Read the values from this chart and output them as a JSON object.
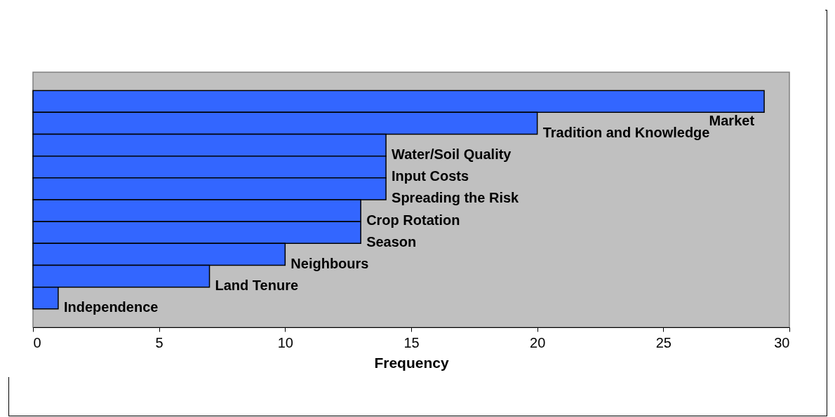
{
  "chart_data": {
    "type": "bar",
    "orientation": "horizontal",
    "xlabel": "Frequency",
    "categories": [
      "Market",
      "Tradition and Knowledge",
      "Water/Soil Quality",
      "Input Costs",
      "Spreading the Risk",
      "Crop Rotation",
      "Season",
      "Neighbours",
      "Land Tenure",
      "Independence"
    ],
    "values": [
      29,
      20,
      14,
      14,
      14,
      13,
      13,
      10,
      7,
      1
    ],
    "color": "#3366ff",
    "xlim": [
      0,
      30
    ],
    "xticks": [
      0,
      5,
      10,
      15,
      20,
      25,
      30
    ],
    "grid": false
  }
}
